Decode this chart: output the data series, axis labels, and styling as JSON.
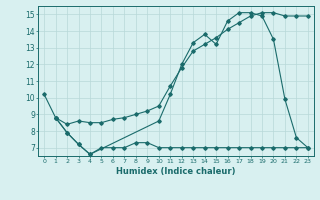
{
  "line1_x": [
    0,
    1,
    2,
    3,
    4,
    10,
    11,
    12,
    13,
    14,
    15,
    16,
    17,
    18,
    19,
    20,
    21,
    22,
    23
  ],
  "line1_y": [
    10.2,
    8.8,
    7.9,
    7.2,
    6.6,
    8.6,
    10.2,
    12.0,
    13.3,
    13.8,
    13.2,
    14.6,
    15.1,
    15.1,
    14.9,
    13.5,
    9.9,
    7.6,
    7.0
  ],
  "line2_x": [
    1,
    2,
    3,
    4,
    5,
    6,
    7,
    8,
    9,
    10,
    11,
    12,
    13,
    14,
    15,
    16,
    17,
    18,
    19,
    20,
    21,
    22,
    23
  ],
  "line2_y": [
    8.8,
    8.4,
    8.6,
    8.5,
    8.5,
    8.7,
    8.8,
    9.0,
    9.2,
    9.5,
    10.7,
    11.8,
    12.8,
    13.2,
    13.6,
    14.1,
    14.5,
    14.9,
    15.1,
    15.1,
    14.9,
    14.9,
    14.9
  ],
  "line3_x": [
    1,
    2,
    3,
    4,
    5,
    6,
    7,
    8,
    9,
    10,
    11,
    12,
    13,
    14,
    15,
    16,
    17,
    18,
    19,
    20,
    21,
    22,
    23
  ],
  "line3_y": [
    8.8,
    7.9,
    7.2,
    6.6,
    7.0,
    7.0,
    7.0,
    7.3,
    7.3,
    7.0,
    7.0,
    7.0,
    7.0,
    7.0,
    7.0,
    7.0,
    7.0,
    7.0,
    7.0,
    7.0,
    7.0,
    7.0,
    7.0
  ],
  "line_color": "#1a6b6b",
  "bg_color": "#d8f0f0",
  "grid_color": "#b8d8d8",
  "xlabel": "Humidex (Indice chaleur)",
  "ylim": [
    6.5,
    15.5
  ],
  "xlim": [
    -0.5,
    23.5
  ],
  "yticks": [
    7,
    8,
    9,
    10,
    11,
    12,
    13,
    14,
    15
  ],
  "xticks": [
    0,
    1,
    2,
    3,
    4,
    5,
    6,
    7,
    8,
    9,
    10,
    11,
    12,
    13,
    14,
    15,
    16,
    17,
    18,
    19,
    20,
    21,
    22,
    23
  ]
}
